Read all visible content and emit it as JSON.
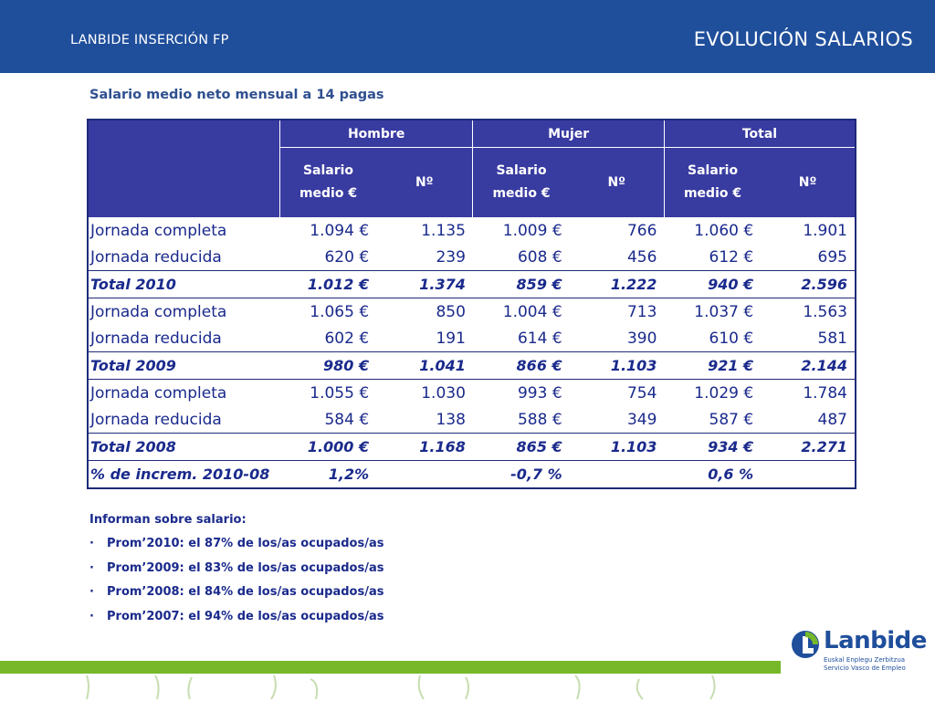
{
  "header": {
    "left_text": "LANBIDE INSERCIÓN FP",
    "title": "EVOLUCIÓN SALARIOS"
  },
  "subtitle": "Salario medio neto mensual a 14 pagas",
  "table": {
    "groups": [
      "Hombre",
      "Mujer",
      "Total"
    ],
    "sub": {
      "salario_line1": "Salario",
      "salario_line2": "medio €",
      "n": "Nº"
    },
    "rows": [
      {
        "label": "Jornada completa",
        "values": [
          "1.094 €",
          "1.135",
          "1.009 €",
          "766",
          "1.060 €",
          "1.901"
        ]
      },
      {
        "label": "Jornada reducida",
        "values": [
          "620 €",
          "239",
          "608 €",
          "456",
          "612 €",
          "695"
        ]
      },
      {
        "label": "Total 2010",
        "values": [
          "1.012 €",
          "1.374",
          "859 €",
          "1.222",
          "940 €",
          "2.596"
        ]
      },
      {
        "label": "Jornada completa",
        "values": [
          "1.065 €",
          "850",
          "1.004 €",
          "713",
          "1.037 €",
          "1.563"
        ]
      },
      {
        "label": "Jornada reducida",
        "values": [
          "602 €",
          "191",
          "614 €",
          "390",
          "610 €",
          "581"
        ]
      },
      {
        "label": "Total 2009",
        "values": [
          "980 €",
          "1.041",
          "866 €",
          "1.103",
          "921 €",
          "2.144"
        ]
      },
      {
        "label": "Jornada completa",
        "values": [
          "1.055 €",
          "1.030",
          "993 €",
          "754",
          "1.029 €",
          "1.784"
        ]
      },
      {
        "label": "Jornada reducida",
        "values": [
          "584 €",
          "138",
          "588 €",
          "349",
          "587 €",
          "487"
        ]
      },
      {
        "label": "Total 2008",
        "values": [
          "1.000 €",
          "1.168",
          "865 €",
          "1.103",
          "934 €",
          "2.271"
        ]
      }
    ],
    "increment": {
      "label": "% de increm. 2010-08",
      "hombre": "1,2%",
      "mujer": "-0,7 %",
      "total": "0,6 %"
    }
  },
  "notes": {
    "title": "Informan sobre salario:",
    "items": [
      "Prom’2010: el 87% de los/as ocupados/as",
      "Prom’2009: el 83% de los/as ocupados/as",
      "Prom’2008: el 84% de los/as ocupados/as",
      "Prom’2007: el 94% de los/as ocupados/as"
    ],
    "bullet": "·"
  },
  "logo": {
    "name": "Lanbide",
    "sub1": "Euskal Enplegu Zerbitzua",
    "sub2": "Servicio Vasco de Empleo"
  },
  "colors": {
    "header_bg": "#1f4e9b",
    "table_header_bg": "#383ba0",
    "text_blue": "#1a2a8c",
    "band_green": "#76b82a"
  }
}
